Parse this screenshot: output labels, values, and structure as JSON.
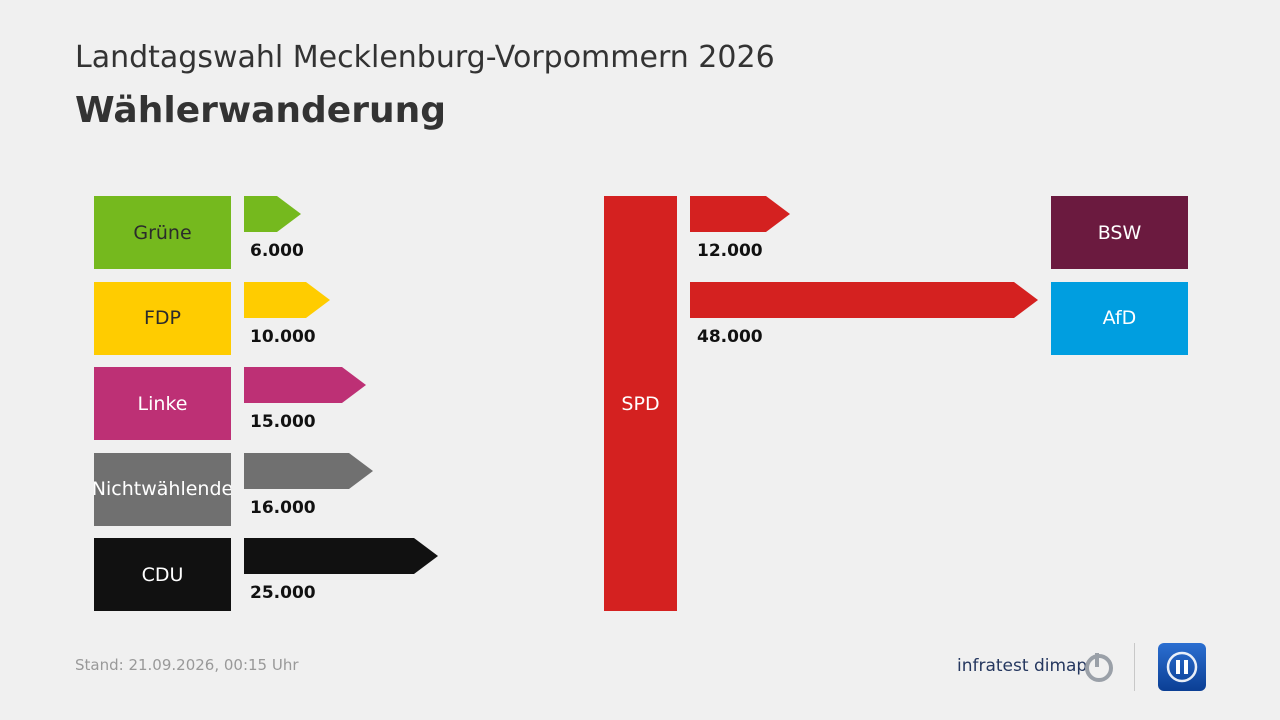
{
  "header": {
    "title": "Landtagswahl Mecklenburg-Vorpommern 2026",
    "subtitle": "Wählerwanderung"
  },
  "chart_data": {
    "type": "flow",
    "center": {
      "label": "SPD",
      "color": "#d42120"
    },
    "inflows": [
      {
        "party": "Grüne",
        "value": 6000,
        "label": "6.000",
        "color": "#75b91e",
        "text_color": "#2b2b2b"
      },
      {
        "party": "FDP",
        "value": 10000,
        "label": "10.000",
        "color": "#ffcc00",
        "text_color": "#2b2b2b"
      },
      {
        "party": "Linke",
        "value": 15000,
        "label": "15.000",
        "color": "#bd3075",
        "text_color": "#ffffff"
      },
      {
        "party": "Nichtwählende",
        "value": 16000,
        "label": "16.000",
        "color": "#707070",
        "text_color": "#ffffff"
      },
      {
        "party": "CDU",
        "value": 25000,
        "label": "25.000",
        "color": "#111111",
        "text_color": "#ffffff"
      }
    ],
    "outflows": [
      {
        "party": "BSW",
        "value": 12000,
        "label": "12.000",
        "color": "#6b1a3f",
        "text_color": "#ffffff"
      },
      {
        "party": "AfD",
        "value": 48000,
        "label": "48.000",
        "color": "#009ee0",
        "text_color": "#ffffff"
      }
    ]
  },
  "footer": {
    "stand": "Stand:  21.09.2026, 00:15 Uhr",
    "brand": "infratest dimap",
    "arrow_color": "#d42120"
  }
}
